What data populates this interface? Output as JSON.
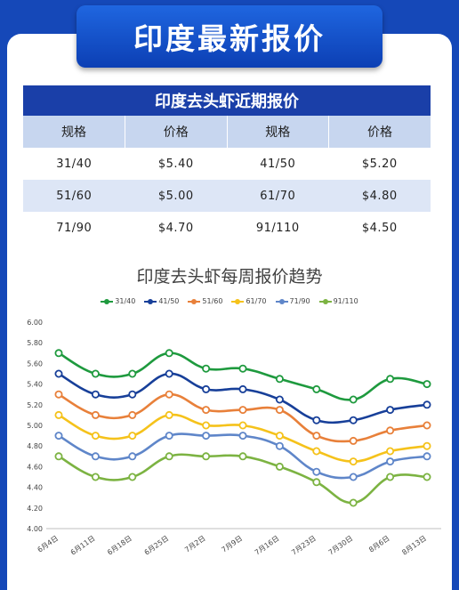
{
  "banner": {
    "title": "印度最新报价"
  },
  "table": {
    "title": "印度去头虾近期报价",
    "headers": [
      "规格",
      "价格",
      "规格",
      "价格"
    ],
    "rows": [
      [
        "31/40",
        "$5.40",
        "41/50",
        "$5.20"
      ],
      [
        "51/60",
        "$5.00",
        "61/70",
        "$4.80"
      ],
      [
        "71/90",
        "$4.70",
        "91/110",
        "$4.50"
      ]
    ]
  },
  "chart_data": {
    "type": "line",
    "title": "印度去头虾每周报价趋势",
    "xlabel": "",
    "ylabel": "",
    "categories": [
      "6月4日",
      "6月11日",
      "6月18日",
      "6月25日",
      "7月2日",
      "7月9日",
      "7月16日",
      "7月23日",
      "7月30日",
      "8月6日",
      "8月13日"
    ],
    "yticks": [
      "4.00",
      "4.20",
      "4.40",
      "4.60",
      "4.80",
      "5.00",
      "5.20",
      "5.40",
      "5.60",
      "5.80",
      "6.00"
    ],
    "ylim": [
      4.0,
      6.0
    ],
    "grid": false,
    "legend_position": "top",
    "series": [
      {
        "name": "31/40",
        "color": "#1e9a3e",
        "values": [
          5.7,
          5.5,
          5.5,
          5.7,
          5.55,
          5.55,
          5.45,
          5.35,
          5.25,
          5.45,
          5.4
        ]
      },
      {
        "name": "41/50",
        "color": "#173f99",
        "values": [
          5.5,
          5.3,
          5.3,
          5.5,
          5.35,
          5.35,
          5.25,
          5.05,
          5.05,
          5.15,
          5.2
        ]
      },
      {
        "name": "51/60",
        "color": "#e8803a",
        "values": [
          5.3,
          5.1,
          5.1,
          5.3,
          5.15,
          5.15,
          5.15,
          4.9,
          4.85,
          4.95,
          5.0
        ]
      },
      {
        "name": "61/70",
        "color": "#f5c21b",
        "values": [
          5.1,
          4.9,
          4.9,
          5.1,
          5.0,
          5.0,
          4.9,
          4.75,
          4.65,
          4.75,
          4.8
        ]
      },
      {
        "name": "71/90",
        "color": "#5f86c9",
        "values": [
          4.9,
          4.7,
          4.7,
          4.9,
          4.9,
          4.9,
          4.8,
          4.55,
          4.5,
          4.65,
          4.7
        ]
      },
      {
        "name": "91/110",
        "color": "#7cb342",
        "values": [
          4.7,
          4.5,
          4.5,
          4.7,
          4.7,
          4.7,
          4.6,
          4.45,
          4.25,
          4.5,
          4.5
        ]
      }
    ]
  }
}
